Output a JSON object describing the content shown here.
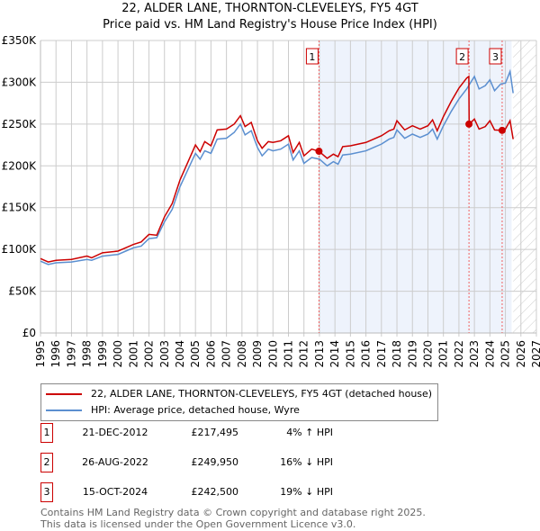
{
  "chart_data": {
    "type": "line",
    "title": "22, ALDER LANE, THORNTON-CLEVELEYS, FY5 4GT",
    "subtitle": "Price paid vs. HM Land Registry's House Price Index (HPI)",
    "xlim": [
      1995,
      2027
    ],
    "ylim": [
      0,
      350000
    ],
    "yticks": [
      0,
      50000,
      100000,
      150000,
      200000,
      250000,
      300000,
      350000
    ],
    "ytick_labels": [
      "£0",
      "£50K",
      "£100K",
      "£150K",
      "£200K",
      "£250K",
      "£300K",
      "£350K"
    ],
    "xticks": [
      "1995",
      "1996",
      "1997",
      "1998",
      "1999",
      "2000",
      "2001",
      "2002",
      "2003",
      "2004",
      "2005",
      "2006",
      "2007",
      "2008",
      "2009",
      "2010",
      "2011",
      "2012",
      "2013",
      "2014",
      "2015",
      "2016",
      "2017",
      "2018",
      "2019",
      "2020",
      "2021",
      "2022",
      "2023",
      "2024",
      "2025",
      "2026",
      "2027"
    ],
    "grid": true,
    "shaded_region": [
      2012.97,
      2025.4
    ],
    "forecast_hatch_from": 2025.5,
    "series": [
      {
        "name": "22, ALDER LANE, THORNTON-CLEVELEYS, FY5 4GT (detached house)",
        "color": "#cc0000",
        "x": [
          1995,
          1995.5,
          1996,
          1997,
          1998,
          1998.3,
          1999,
          2000,
          2000.5,
          2001,
          2001.5,
          2002,
          2002.5,
          2003,
          2003.5,
          2004,
          2004.5,
          2005,
          2005.3,
          2005.6,
          2006,
          2006.4,
          2007,
          2007.5,
          2007.9,
          2008.2,
          2008.6,
          2009,
          2009.3,
          2009.7,
          2010,
          2010.5,
          2011,
          2011.3,
          2011.7,
          2012,
          2012.5,
          2012.97,
          2013.5,
          2013.9,
          2014.2,
          2014.5,
          2015,
          2016,
          2016.5,
          2017,
          2017.5,
          2017.8,
          2018,
          2018.5,
          2019,
          2019.5,
          2020,
          2020.3,
          2020.6,
          2021,
          2021.5,
          2022,
          2022.5,
          2022.64,
          2022.66,
          2023,
          2023.3,
          2023.7,
          2024,
          2024.3,
          2024.79,
          2025,
          2025.3,
          2025.5
        ],
        "y": [
          89000,
          85000,
          87000,
          88000,
          92000,
          90000,
          96000,
          98000,
          102000,
          106000,
          109000,
          118000,
          117000,
          139000,
          155000,
          183000,
          204000,
          225000,
          217000,
          229000,
          224000,
          243000,
          244000,
          250000,
          260000,
          247000,
          252000,
          230000,
          221000,
          229000,
          228000,
          230000,
          236000,
          216000,
          228000,
          212000,
          220000,
          217495,
          209000,
          214000,
          211000,
          223000,
          224000,
          228000,
          232000,
          236000,
          242000,
          244000,
          254000,
          243000,
          248000,
          244000,
          248000,
          255000,
          242000,
          259000,
          277000,
          293000,
          305000,
          307000,
          249950,
          256000,
          244000,
          247000,
          254000,
          243000,
          242500,
          244000,
          254000,
          232000
        ]
      },
      {
        "name": "HPI: Average price, detached house, Wyre",
        "color": "#5b8fd0",
        "x": [
          1995,
          1995.5,
          1996,
          1997,
          1998,
          1998.3,
          1999,
          2000,
          2000.5,
          2001,
          2001.5,
          2002,
          2002.5,
          2003,
          2003.5,
          2004,
          2004.5,
          2005,
          2005.3,
          2005.6,
          2006,
          2006.4,
          2007,
          2007.5,
          2007.9,
          2008.2,
          2008.6,
          2009,
          2009.3,
          2009.7,
          2010,
          2010.5,
          2011,
          2011.3,
          2011.7,
          2012,
          2012.5,
          2013,
          2013.5,
          2013.9,
          2014.2,
          2014.5,
          2015,
          2016,
          2016.5,
          2017,
          2017.5,
          2017.8,
          2018,
          2018.5,
          2019,
          2019.5,
          2020,
          2020.3,
          2020.6,
          2021,
          2021.5,
          2022,
          2022.5,
          2022.7,
          2023,
          2023.3,
          2023.7,
          2024,
          2024.3,
          2024.7,
          2025,
          2025.3,
          2025.5
        ],
        "y": [
          86000,
          82000,
          84000,
          85000,
          88000,
          87000,
          92000,
          94000,
          98000,
          102000,
          104000,
          113000,
          114000,
          133000,
          148000,
          175000,
          195000,
          215000,
          208000,
          218000,
          215000,
          232000,
          233000,
          240000,
          250000,
          237000,
          242000,
          222000,
          212000,
          220000,
          218000,
          220000,
          226000,
          207000,
          218000,
          203000,
          210000,
          208000,
          200000,
          205000,
          202000,
          213000,
          214000,
          218000,
          222000,
          226000,
          232000,
          234000,
          243000,
          233000,
          238000,
          234000,
          238000,
          244000,
          232000,
          248000,
          265000,
          280000,
          292000,
          298000,
          307000,
          292000,
          296000,
          303000,
          290000,
          298000,
          299000,
          313000,
          287000
        ]
      }
    ],
    "sales": [
      {
        "label": "1",
        "x": 2012.97,
        "y": 217495,
        "date": "21-DEC-2012",
        "price": "£217,495",
        "hpi": "4% ↑ HPI"
      },
      {
        "label": "2",
        "x": 2022.65,
        "y": 249950,
        "date": "26-AUG-2022",
        "price": "£249,950",
        "hpi": "16% ↓ HPI"
      },
      {
        "label": "3",
        "x": 2024.79,
        "y": 242500,
        "date": "15-OCT-2024",
        "price": "£242,500",
        "hpi": "19% ↓ HPI"
      }
    ]
  },
  "footer": {
    "line1": "Contains HM Land Registry data © Crown copyright and database right 2025.",
    "line2": "This data is licensed under the Open Government Licence v3.0."
  }
}
